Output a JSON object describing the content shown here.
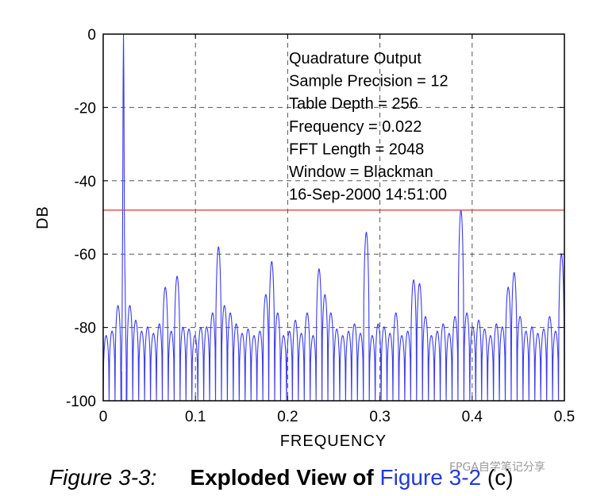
{
  "chart_data": {
    "type": "line",
    "title": "",
    "xlabel": "FREQUENCY",
    "ylabel": "DB",
    "xlim": [
      0,
      0.5
    ],
    "ylim": [
      -100,
      0
    ],
    "x_ticks": [
      "0",
      "0.1",
      "0.2",
      "0.3",
      "0.4",
      "0.5"
    ],
    "y_ticks": [
      "0",
      "-20",
      "-40",
      "-60",
      "-80",
      "-100"
    ],
    "grid": true,
    "series": [
      {
        "color": "#3a3aee",
        "main_peak": {
          "x": 0.022,
          "y": 0
        },
        "spurs": [
          {
            "x": 0.015,
            "y": -74
          },
          {
            "x": 0.029,
            "y": -74
          },
          {
            "x": 0.037,
            "y": -78
          },
          {
            "x": 0.063,
            "y": -79
          },
          {
            "x": 0.069,
            "y": -69
          },
          {
            "x": 0.077,
            "y": -66
          },
          {
            "x": 0.088,
            "y": -80
          },
          {
            "x": 0.103,
            "y": -80
          },
          {
            "x": 0.118,
            "y": -76
          },
          {
            "x": 0.126,
            "y": -58
          },
          {
            "x": 0.133,
            "y": -74
          },
          {
            "x": 0.14,
            "y": -76
          },
          {
            "x": 0.147,
            "y": -79
          },
          {
            "x": 0.174,
            "y": -71
          },
          {
            "x": 0.181,
            "y": -62
          },
          {
            "x": 0.188,
            "y": -76
          },
          {
            "x": 0.208,
            "y": -78
          },
          {
            "x": 0.222,
            "y": -76
          },
          {
            "x": 0.231,
            "y": -64
          },
          {
            "x": 0.238,
            "y": -71
          },
          {
            "x": 0.246,
            "y": -76
          },
          {
            "x": 0.271,
            "y": -79
          },
          {
            "x": 0.285,
            "y": -54
          },
          {
            "x": 0.299,
            "y": -79
          },
          {
            "x": 0.318,
            "y": -76
          },
          {
            "x": 0.334,
            "y": -67
          },
          {
            "x": 0.34,
            "y": -68
          },
          {
            "x": 0.347,
            "y": -77
          },
          {
            "x": 0.367,
            "y": -79
          },
          {
            "x": 0.382,
            "y": -77
          },
          {
            "x": 0.389,
            "y": -48
          },
          {
            "x": 0.397,
            "y": -76
          },
          {
            "x": 0.405,
            "y": -78
          },
          {
            "x": 0.425,
            "y": -79
          },
          {
            "x": 0.438,
            "y": -69
          },
          {
            "x": 0.446,
            "y": -65
          },
          {
            "x": 0.453,
            "y": -77
          },
          {
            "x": 0.485,
            "y": -77
          },
          {
            "x": 0.497,
            "y": -60
          }
        ],
        "noise_floor": -81
      }
    ],
    "reference_line": {
      "y": -48,
      "color": "#e8322e"
    },
    "annotations": [
      "Quadrature Output",
      "Sample Precision = 12",
      "Table Depth = 256",
      "Frequency = 0.022",
      "FFT Length = 2048",
      "Window = Blackman",
      "16-Sep-2000 14:51:00"
    ]
  },
  "caption": {
    "figure": "Figure 3-3:",
    "title": "Exploded View of",
    "link": "Figure 3-2",
    "suffix": "(c)"
  },
  "watermark": "FPGA自学笔记分享"
}
